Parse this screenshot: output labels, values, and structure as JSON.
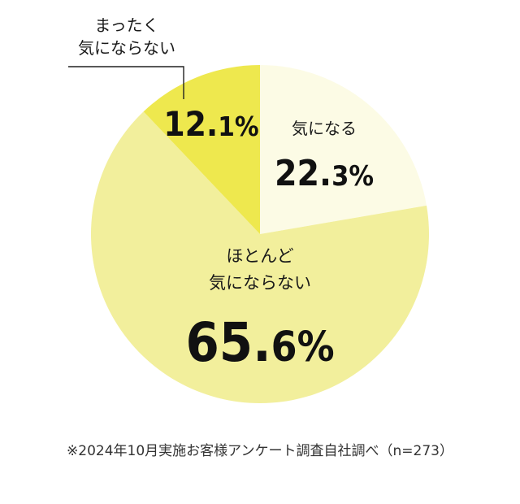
{
  "chart_data": {
    "type": "pie",
    "title": "",
    "series": [
      {
        "values": [
          22.3,
          65.6,
          12.1
        ]
      }
    ],
    "slices": [
      {
        "label_lines": [
          "気になる"
        ],
        "value": 22.3,
        "num": "22.",
        "dec": "3",
        "pct": "%",
        "color": "#FCFBE5"
      },
      {
        "label_lines": [
          "ほとんど",
          "気にならない"
        ],
        "value": 65.6,
        "num": "65.",
        "dec": "6",
        "pct": "%",
        "color": "#F2EF9C"
      },
      {
        "label_lines": [
          "まったく",
          "気にならない"
        ],
        "value": 12.1,
        "num": "12.",
        "dec": "1",
        "pct": "%",
        "color": "#EEE84E"
      }
    ],
    "start_angle": "12 o'clock",
    "direction": "clockwise",
    "legend": "none"
  },
  "footnote": "※2024年10月実施お客様アンケート調査自社調べ（n=273）"
}
